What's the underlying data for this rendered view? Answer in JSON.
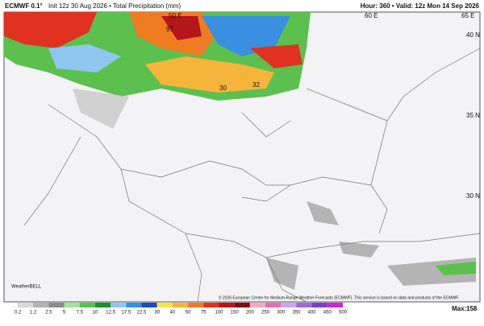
{
  "header": {
    "model": "ECMWF 0.1°",
    "title": "Init 12z 30 Aug 2026 • Total Precipitation (mm)",
    "valid": "Hour: 360 • Valid: 12z Mon 14 Sep 2026"
  },
  "map": {
    "lon_labels": [
      "50 E",
      "60 E",
      "65 E"
    ],
    "lat_labels": [
      "40 N",
      "35 N",
      "30 N"
    ],
    "point_labels": [
      "97",
      "30",
      "32"
    ],
    "logo": "WeatherBELL",
    "credit": "© 2026 European Centre for Medium-Range Weather Forecasts (ECMWF). This service is based on data and products of the ECMWF."
  },
  "legend": {
    "ticks": [
      0.2,
      1.2,
      2.5,
      5,
      7.5,
      10,
      12.5,
      17.5,
      22.5,
      30,
      40,
      50,
      75,
      100,
      150,
      200,
      250,
      300,
      350,
      400,
      450,
      500
    ],
    "colors": [
      "#d9d9d9",
      "#b3b3b3",
      "#8c8c8c",
      "#a6e39a",
      "#54c44a",
      "#1e8f2a",
      "#8ec6f0",
      "#3a8fe0",
      "#1a4fb8",
      "#f5e64a",
      "#f5b43c",
      "#ef7b22",
      "#e0321e",
      "#b3171a",
      "#7d0e12",
      "#f2a7c8",
      "#e46fb0",
      "#c9a7e8",
      "#9c6ad6",
      "#7b3fc4",
      "#c42bd0"
    ],
    "max_label": "Max:",
    "max_value": 158
  }
}
